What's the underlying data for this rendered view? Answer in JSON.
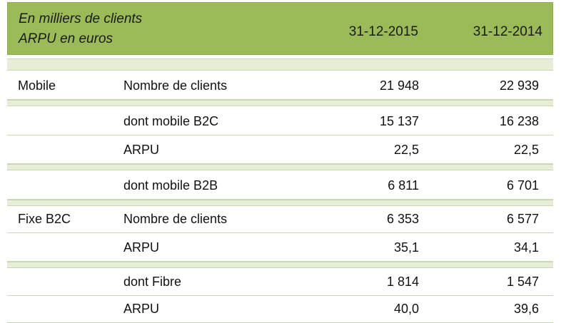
{
  "header": {
    "unit_line1": "En milliers de clients",
    "unit_line2": "ARPU en euros",
    "col1": "31-12-2015",
    "col2": "31-12-2014"
  },
  "rows": [
    {
      "category": "Mobile",
      "label": "Nombre de clients",
      "v2015": "21 948",
      "v2014": "22 939"
    },
    {
      "category": "",
      "label": "dont mobile B2C",
      "v2015": "15 137",
      "v2014": "16 238"
    },
    {
      "category": "",
      "label": "ARPU",
      "v2015": "22,5",
      "v2014": "22,5"
    },
    {
      "category": "",
      "label": "dont mobile B2B",
      "v2015": "6 811",
      "v2014": "6 701"
    },
    {
      "category": "Fixe B2C",
      "label": "Nombre de clients",
      "v2015": "6 353",
      "v2014": "6 577"
    },
    {
      "category": "",
      "label": "ARPU",
      "v2015": "35,1",
      "v2014": "34,1"
    },
    {
      "category": "",
      "label": "dont Fibre",
      "v2015": "1 814",
      "v2014": "1 547"
    },
    {
      "category": "",
      "label": "ARPU",
      "v2015": "40,0",
      "v2014": "39,6"
    }
  ]
}
